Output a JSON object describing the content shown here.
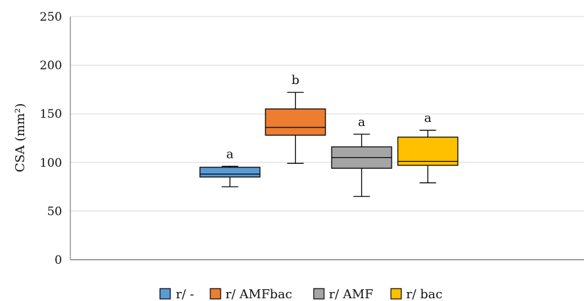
{
  "chart_data": {
    "type": "box",
    "title": "",
    "xlabel": "",
    "ylabel": "CSA (mm²)",
    "ylim": [
      0,
      250
    ],
    "yticks": [
      0,
      50,
      100,
      150,
      200,
      250
    ],
    "grid": true,
    "legend_position": "bottom",
    "series": [
      {
        "name": "r/ -",
        "color": "#5b9bd5",
        "min": 75,
        "q1": 85,
        "median": 88,
        "q3": 95,
        "max": 96,
        "label": "a"
      },
      {
        "name": "r/ AMFbac",
        "color": "#ed7d31",
        "min": 99,
        "q1": 128,
        "median": 136,
        "q3": 155,
        "max": 172,
        "label": "b"
      },
      {
        "name": "r/ AMF",
        "color": "#a5a5a5",
        "min": 65,
        "q1": 94,
        "median": 105,
        "q3": 116,
        "max": 129,
        "label": "a"
      },
      {
        "name": "r/ bac",
        "color": "#ffc000",
        "min": 79,
        "q1": 97,
        "median": 101,
        "q3": 126,
        "max": 133,
        "label": "a"
      }
    ]
  }
}
